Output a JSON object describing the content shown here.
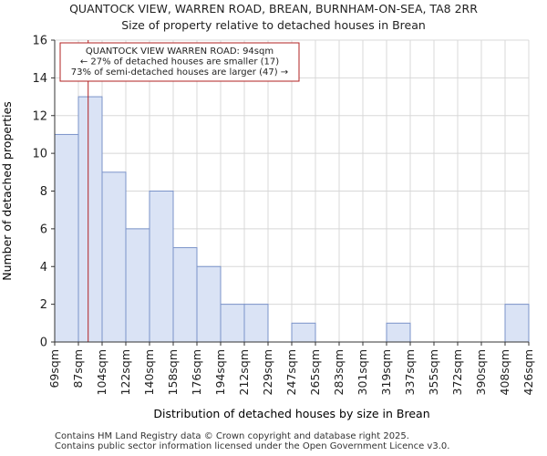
{
  "header": {
    "title": "QUANTOCK VIEW, WARREN ROAD, BREAN, BURNHAM-ON-SEA, TA8 2RR",
    "subtitle": "Size of property relative to detached houses in Brean"
  },
  "footer": {
    "line1": "Contains HM Land Registry data © Crown copyright and database right 2025.",
    "line2": "Contains public sector information licensed under the Open Government Licence v3.0."
  },
  "chart_data": {
    "type": "bar",
    "xlabel": "Distribution of detached houses by size in Brean",
    "ylabel": "Number of detached properties",
    "ylim": [
      0,
      16
    ],
    "yticks": [
      0,
      2,
      4,
      6,
      8,
      10,
      12,
      14,
      16
    ],
    "grid": true,
    "x_tick_labels": [
      "69sqm",
      "87sqm",
      "104sqm",
      "122sqm",
      "140sqm",
      "158sqm",
      "176sqm",
      "194sqm",
      "212sqm",
      "229sqm",
      "247sqm",
      "265sqm",
      "283sqm",
      "301sqm",
      "319sqm",
      "337sqm",
      "355sqm",
      "372sqm",
      "390sqm",
      "408sqm",
      "426sqm"
    ],
    "values": [
      11,
      13,
      9,
      6,
      8,
      5,
      4,
      2,
      2,
      0,
      1,
      0,
      0,
      0,
      1,
      0,
      0,
      0,
      0,
      2
    ],
    "bar_fill": "#dae3f5",
    "bar_stroke": "#7b93c9",
    "marker": {
      "value_sqm": 94,
      "color": "#b22222"
    },
    "annotation": {
      "line1": "QUANTOCK VIEW WARREN ROAD: 94sqm",
      "line2": "← 27% of detached houses are smaller (17)",
      "line3": "73% of semi-detached houses are larger (47) →",
      "border_color": "#b22222"
    }
  }
}
